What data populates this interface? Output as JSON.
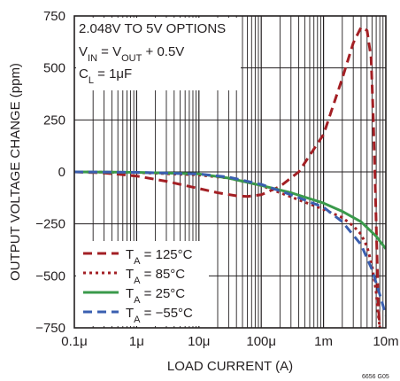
{
  "chart_data": {
    "type": "line",
    "title": "",
    "xlabel": "LOAD CURRENT (A)",
    "ylabel": "OUTPUT VOLTAGE CHANGE (ppm)",
    "x_scale": "log",
    "xlim": [
      1e-07,
      0.01
    ],
    "ylim": [
      -750,
      750
    ],
    "grid": true,
    "x_ticks": [
      {
        "value": 1e-07,
        "label": "0.1μ"
      },
      {
        "value": 1e-06,
        "label": "1μ"
      },
      {
        "value": 1e-05,
        "label": "10μ"
      },
      {
        "value": 0.0001,
        "label": "100μ"
      },
      {
        "value": 0.001,
        "label": "1m"
      },
      {
        "value": 0.01,
        "label": "10m"
      }
    ],
    "y_ticks": [
      {
        "value": 750,
        "label": "750"
      },
      {
        "value": 500,
        "label": "500"
      },
      {
        "value": 250,
        "label": "250"
      },
      {
        "value": 0,
        "label": "0"
      },
      {
        "value": -250,
        "label": "−250"
      },
      {
        "value": -500,
        "label": "−500"
      },
      {
        "value": -750,
        "label": "−750"
      }
    ],
    "annotation": {
      "line1": "2.048V TO 5V OPTIONS",
      "line2": {
        "a": "V",
        "a_sub": "IN",
        "b": " = V",
        "b_sub": "OUT",
        "c": " + 0.5V"
      },
      "line3": {
        "a": "C",
        "a_sub": "L",
        "b": " = 1μF"
      }
    },
    "legend_position": "bottom-left",
    "series": [
      {
        "name": "125°C",
        "legend_prefix": "T",
        "legend_sub": "A",
        "legend_eq": " = ",
        "color": "#a31f24",
        "dash": "10,6",
        "x": [
          1e-07,
          3e-07,
          1e-06,
          3e-06,
          1e-05,
          2e-05,
          4e-05,
          6e-05,
          0.0001,
          0.0002,
          0.0004,
          0.001,
          0.002,
          0.003,
          0.004,
          0.005,
          0.0058,
          0.0063,
          0.0068,
          0.0072,
          0.0076,
          0.008
        ],
        "y": [
          0,
          -5,
          -20,
          -45,
          -80,
          -100,
          -115,
          -118,
          -110,
          -70,
          0,
          180,
          450,
          620,
          695,
          680,
          550,
          250,
          -100,
          -400,
          -650,
          -750
        ]
      },
      {
        "name": "85°C",
        "legend_prefix": "T",
        "legend_sub": "A",
        "legend_eq": " = ",
        "color": "#a31f24",
        "dash": "3,4",
        "x": [
          1e-07,
          1e-06,
          1e-05,
          3e-05,
          0.0001,
          0.0003,
          0.001,
          0.002,
          0.003,
          0.004,
          0.005,
          0.006,
          0.007,
          0.0075,
          0.008
        ],
        "y": [
          0,
          -3,
          -15,
          -30,
          -65,
          -120,
          -180,
          -220,
          -260,
          -300,
          -360,
          -450,
          -580,
          -680,
          -750
        ]
      },
      {
        "name": "25°C",
        "legend_prefix": "T",
        "legend_sub": "A",
        "legend_eq": " = ",
        "color": "#3a9a4b",
        "dash": "",
        "x": [
          1e-07,
          1e-06,
          1e-05,
          3e-05,
          0.0001,
          0.0003,
          0.001,
          0.002,
          0.004,
          0.007,
          0.01
        ],
        "y": [
          0,
          -2,
          -10,
          -30,
          -65,
          -100,
          -150,
          -190,
          -240,
          -310,
          -370
        ]
      },
      {
        "name": "−55°C",
        "legend_prefix": "T",
        "legend_sub": "A",
        "legend_eq": " = ",
        "color": "#3a5fb0",
        "dash": "10,6",
        "x": [
          1e-07,
          1e-06,
          1e-05,
          3e-05,
          0.0001,
          0.0003,
          0.001,
          0.002,
          0.004,
          0.006,
          0.008,
          0.01
        ],
        "y": [
          0,
          -2,
          -10,
          -25,
          -60,
          -110,
          -170,
          -240,
          -350,
          -470,
          -590,
          -690
        ]
      }
    ],
    "figure_id": "6656 G05"
  }
}
